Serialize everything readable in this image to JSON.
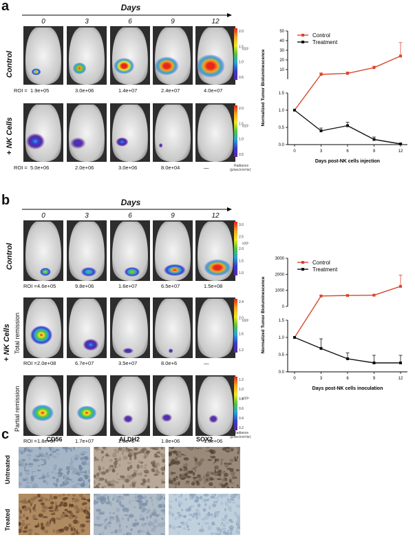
{
  "figure": {
    "panel_a": {
      "letter": "a",
      "days_title": "Days",
      "days": [
        "0",
        "3",
        "6",
        "9",
        "12"
      ],
      "rows": [
        {
          "label": "Control",
          "roi_prefix": "ROI = ",
          "roi": [
            "1.9e+05",
            "3.0e+06",
            "1.4e+07",
            "2.4e+07",
            "4.0e+07"
          ],
          "scale_exp": "x10⁷",
          "scale_ticks": [
            "2.0",
            "1.5",
            "1.0",
            "0.5"
          ]
        },
        {
          "label": "+ NK Cells",
          "roi_prefix": "ROI =  ",
          "roi": [
            "5.0e+06",
            "2.0e+06",
            "3.0e+06",
            "8.0e+04",
            "—"
          ],
          "scale_exp": "x10⁷",
          "scale_ticks": [
            "2.0",
            "1.5",
            "1.0",
            "0.5"
          ]
        }
      ],
      "radiance_label": "Radiance",
      "radiance_units": "(p/sec/cm²/sr)"
    },
    "panel_b": {
      "letter": "b",
      "days_title": "Days",
      "days": [
        "0",
        "3",
        "6",
        "9",
        "12"
      ],
      "group_label": "+ NK Cells",
      "rows": [
        {
          "label": "Control",
          "roi_prefix": "ROI = ",
          "roi": [
            "4.6e+05",
            "9.8e+06",
            "1.6e+07",
            "6.5e+07",
            "1.5e+08"
          ],
          "scale_exp": "x10⁷",
          "scale_ticks": [
            "3.0",
            "2.5",
            "2.0",
            "1.5",
            "1.0"
          ]
        },
        {
          "label": "Total remission",
          "roi_prefix": "ROI = ",
          "roi": [
            "2.0e+08",
            "6.7e+07",
            "3.5e+07",
            "8.0e+6",
            "—"
          ],
          "scale_exp": "x10⁷",
          "scale_ticks": [
            "2.4",
            "2.0",
            "1.6",
            "1.2"
          ]
        },
        {
          "label": "Partial remission",
          "roi_prefix": "ROI = ",
          "roi": [
            "1.8e+07",
            "1.7e+07",
            "2.6e+6",
            "1.8e+06",
            "1.6e+06"
          ],
          "scale_exp": "x10⁶",
          "scale_ticks": [
            "1.2",
            "1.0",
            "0.8",
            "0.6",
            "0.4",
            "0.2"
          ]
        }
      ],
      "radiance_label": "Radiance",
      "radiance_units": "(p/sec/cm²/sr)"
    },
    "panel_c": {
      "letter": "c",
      "columns": [
        "CD56",
        "ALDH2",
        "SOX2"
      ],
      "rows": [
        "Untreated",
        "Treated"
      ]
    }
  },
  "chart_data": [
    {
      "type": "line",
      "ylabel": "Normalized Tumor Bioluminescence",
      "xlabel": "Days post-NK cells injection",
      "x": [
        0,
        3,
        6,
        9,
        12
      ],
      "x_ticks": [
        "0",
        "3",
        "6",
        "9",
        "12"
      ],
      "broken_y_axis": true,
      "upper_ticks": [
        "50",
        "40",
        "30",
        "20",
        "10"
      ],
      "upper_ylim": [
        0,
        50
      ],
      "lower_ticks": [
        "1.5",
        "1.0",
        "0.5",
        "0.0"
      ],
      "lower_ylim": [
        0,
        1.5
      ],
      "legend_position": "top-left",
      "series": [
        {
          "name": "Control",
          "color": "#d9462b",
          "values": [
            1.0,
            5.0,
            6.0,
            12.0,
            24.0
          ],
          "errors": [
            0,
            1.5,
            1.5,
            1.5,
            14.0
          ]
        },
        {
          "name": "Treatment",
          "color": "#111111",
          "values": [
            1.0,
            0.4,
            0.55,
            0.15,
            0.02
          ],
          "errors": [
            0,
            0.08,
            0.1,
            0.07,
            0.02
          ]
        }
      ]
    },
    {
      "type": "line",
      "ylabel": "Normalized Tumor Bioluminescence",
      "xlabel": "Days post-NK cells inoculation",
      "x": [
        0,
        3,
        6,
        9,
        12
      ],
      "x_ticks": [
        "0",
        "3",
        "6",
        "9",
        "12"
      ],
      "broken_y_axis": true,
      "upper_ticks": [
        "3000",
        "2000",
        "1000",
        "0"
      ],
      "upper_ylim": [
        0,
        3000
      ],
      "lower_ticks": [
        "1.5",
        "1.0",
        "0.5",
        "0.0"
      ],
      "lower_ylim": [
        0,
        1.5
      ],
      "legend_position": "top-left",
      "series": [
        {
          "name": "Control",
          "color": "#d9462b",
          "values": [
            1.0,
            650,
            680,
            700,
            1250
          ],
          "errors": [
            0,
            30,
            30,
            30,
            700
          ]
        },
        {
          "name": "Treatment",
          "color": "#111111",
          "values": [
            1.0,
            0.68,
            0.38,
            0.26,
            0.26
          ],
          "errors": [
            0,
            0.28,
            0.17,
            0.22,
            0.22
          ]
        }
      ]
    }
  ]
}
